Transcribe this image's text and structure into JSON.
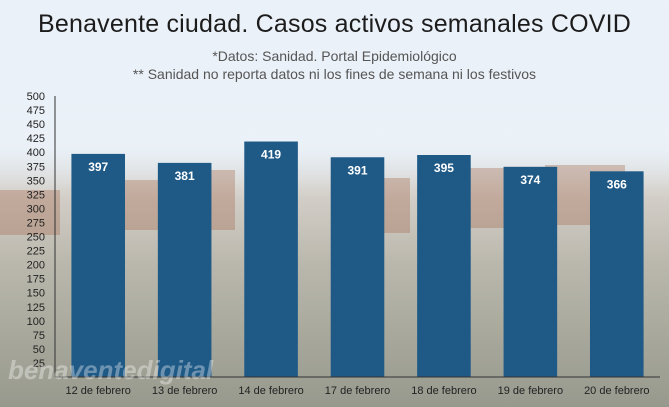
{
  "chart_data": {
    "type": "bar",
    "title": "Benavente ciudad. Casos activos semanales COVID",
    "subtitle_1": "*Datos: Sanidad. Portal Epidemiológico",
    "subtitle_2": "** Sanidad no reporta datos ni los fines de semana ni los festivos",
    "categories": [
      "12 de febrero",
      "13 de febrero",
      "14 de febrero",
      "17 de febrero",
      "18 de febrero",
      "19 de febrero",
      "20 de febrero"
    ],
    "values": [
      397,
      381,
      419,
      391,
      395,
      374,
      366
    ],
    "ylim": [
      0,
      500
    ],
    "ytick_step": 25,
    "xlabel": "",
    "ylabel": "",
    "bar_color": "#1f5a87",
    "data_labels": true
  },
  "watermark": "benaventedigital"
}
